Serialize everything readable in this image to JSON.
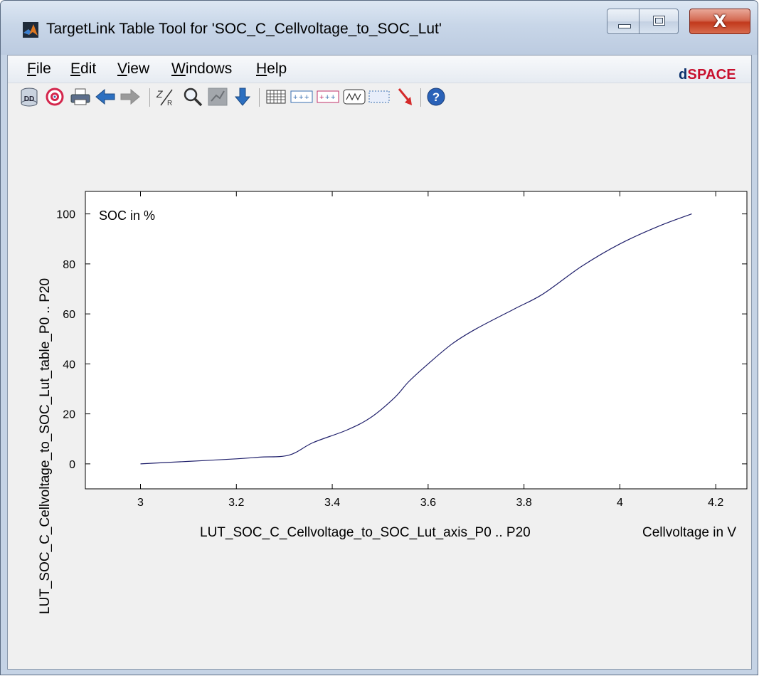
{
  "window": {
    "title": "TargetLink Table Tool for 'SOC_C_Cellvoltage_to_SOC_Lut'",
    "close_glyph": "X"
  },
  "menu": {
    "items": [
      {
        "label": "File",
        "accel": "F",
        "rest": "ile"
      },
      {
        "label": "Edit",
        "accel": "E",
        "rest": "dit"
      },
      {
        "label": "View",
        "accel": "V",
        "rest": "iew"
      },
      {
        "label": "Windows",
        "accel": "W",
        "rest": "indows"
      },
      {
        "label": "Help",
        "accel": "H",
        "rest": "elp"
      }
    ]
  },
  "toolbar": {
    "icons": [
      "dd-icon",
      "target-icon",
      "print-icon",
      "back-arrow-icon",
      "forward-arrow-icon",
      "zoom-axis-icon",
      "magnifier-icon",
      "pan-icon",
      "down-arrow-icon",
      "table-grid-icon",
      "add-row-icon",
      "add-column-icon",
      "wave-select-icon",
      "selection-rect-icon",
      "pointer-arrow-icon",
      "help-icon"
    ],
    "dd_label": "DD"
  },
  "brand": {
    "d": "d",
    "rest": "SPACE",
    "colors": {
      "d": "#0a2f6b",
      "rest": "#c8102e"
    }
  },
  "chart_data": {
    "type": "line",
    "title": "",
    "annotation": "SOC in %",
    "xlabel": "LUT_SOC_C_Cellvoltage_to_SOC_Lut_axis_P0 .. P20",
    "xunit": "Cellvoltage in V",
    "ylabel": "LUT_SOC_C_Cellvoltage_to_SOC_Lut_table_P0 .. P20",
    "xlim": [
      2.885,
      4.265
    ],
    "ylim": [
      -10,
      109
    ],
    "xticks": [
      3,
      3.2,
      3.4,
      3.6,
      3.8,
      4,
      4.2
    ],
    "xtick_labels": [
      "3",
      "3.2",
      "3.4",
      "3.6",
      "3.8",
      "4",
      "4.2"
    ],
    "yticks": [
      0,
      20,
      40,
      60,
      80,
      100
    ],
    "ytick_labels": [
      "0",
      "20",
      "40",
      "60",
      "80",
      "100"
    ],
    "grid": false,
    "line_color": "#1f1f6b",
    "series": [
      {
        "x": [
          3.0,
          3.1,
          3.2,
          3.25,
          3.31,
          3.36,
          3.43,
          3.48,
          3.53,
          3.56,
          3.6,
          3.65,
          3.7,
          3.78,
          3.84,
          3.92,
          4.0,
          4.08,
          4.15
        ],
        "y": [
          0,
          1,
          2,
          2.7,
          3.5,
          8.5,
          13.5,
          18.5,
          26.5,
          33,
          40,
          48,
          54,
          62,
          68,
          79,
          88,
          95,
          100
        ]
      }
    ]
  }
}
